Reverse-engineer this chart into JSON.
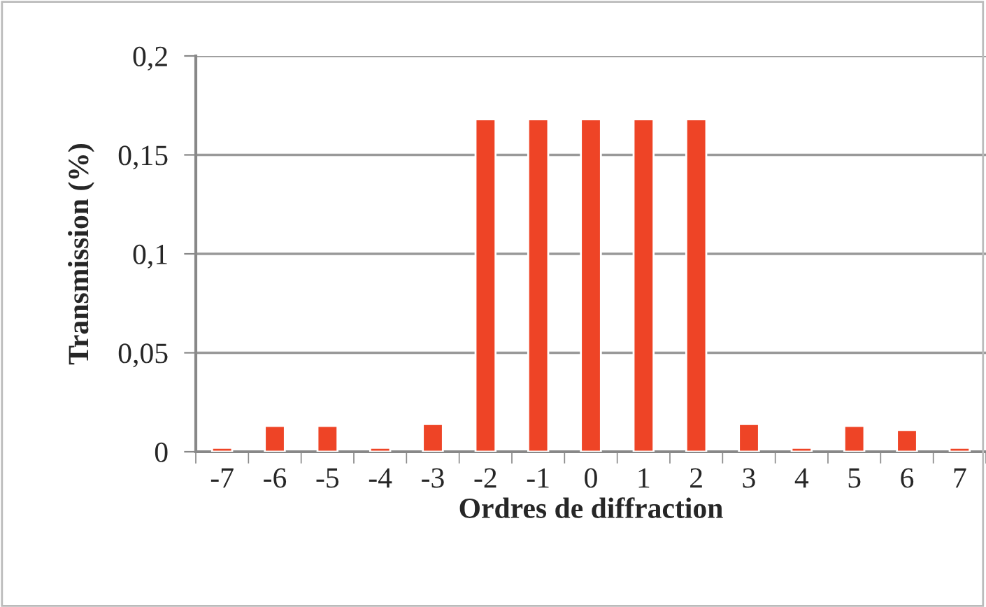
{
  "chart_data": {
    "type": "bar",
    "categories": [
      "-7",
      "-6",
      "-5",
      "-4",
      "-3",
      "-2",
      "-1",
      "0",
      "1",
      "2",
      "3",
      "4",
      "5",
      "6",
      "7"
    ],
    "values": [
      0.002,
      0.013,
      0.013,
      0.002,
      0.014,
      0.168,
      0.168,
      0.168,
      0.168,
      0.168,
      0.014,
      0.002,
      0.013,
      0.011,
      0.002
    ],
    "color": "#ee4426",
    "xlabel": "Ordres de diffraction",
    "ylabel": "Transmission (%)",
    "ylim": [
      0,
      0.2
    ],
    "yticks": [
      0,
      {
        "value": 0.05,
        "label": "0,05"
      },
      {
        "value": 0.1,
        "label": "0,1"
      },
      {
        "value": 0.15,
        "label": "0,15"
      },
      {
        "value": 0.2,
        "label": "0,2"
      }
    ],
    "grid": "y",
    "legend": false
  }
}
